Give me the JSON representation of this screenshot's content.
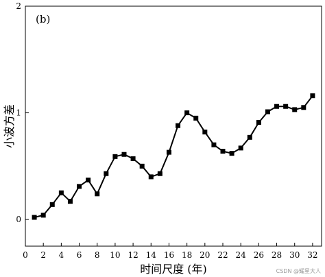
{
  "chart_data": {
    "type": "line",
    "panel_label": "(b)",
    "xlabel": "时间尺度 (年)",
    "ylabel": "小波方差",
    "xlim": [
      0,
      33
    ],
    "ylim": [
      -0.25,
      2
    ],
    "x_ticks": [
      0,
      2,
      4,
      6,
      8,
      10,
      12,
      14,
      16,
      18,
      20,
      22,
      24,
      26,
      28,
      30,
      32
    ],
    "y_ticks": [
      0,
      1,
      2
    ],
    "grid": false,
    "legend": "none",
    "line_color": "#000000",
    "marker": "square",
    "series": [
      {
        "x": [
          1,
          2,
          3,
          4,
          5,
          6,
          7,
          8,
          9,
          10,
          11,
          12,
          13,
          14,
          15,
          16,
          17,
          18,
          19,
          20,
          21,
          22,
          23,
          24,
          25,
          26,
          27,
          28,
          29,
          30,
          31,
          32
        ],
        "y": [
          0.02,
          0.04,
          0.14,
          0.25,
          0.17,
          0.31,
          0.37,
          0.24,
          0.43,
          0.59,
          0.61,
          0.57,
          0.5,
          0.4,
          0.43,
          0.63,
          0.88,
          1.0,
          0.95,
          0.82,
          0.7,
          0.64,
          0.62,
          0.67,
          0.77,
          0.91,
          1.01,
          1.06,
          1.06,
          1.03,
          1.05,
          1.16
        ]
      }
    ]
  },
  "watermark": "CSDN @耀星大人"
}
